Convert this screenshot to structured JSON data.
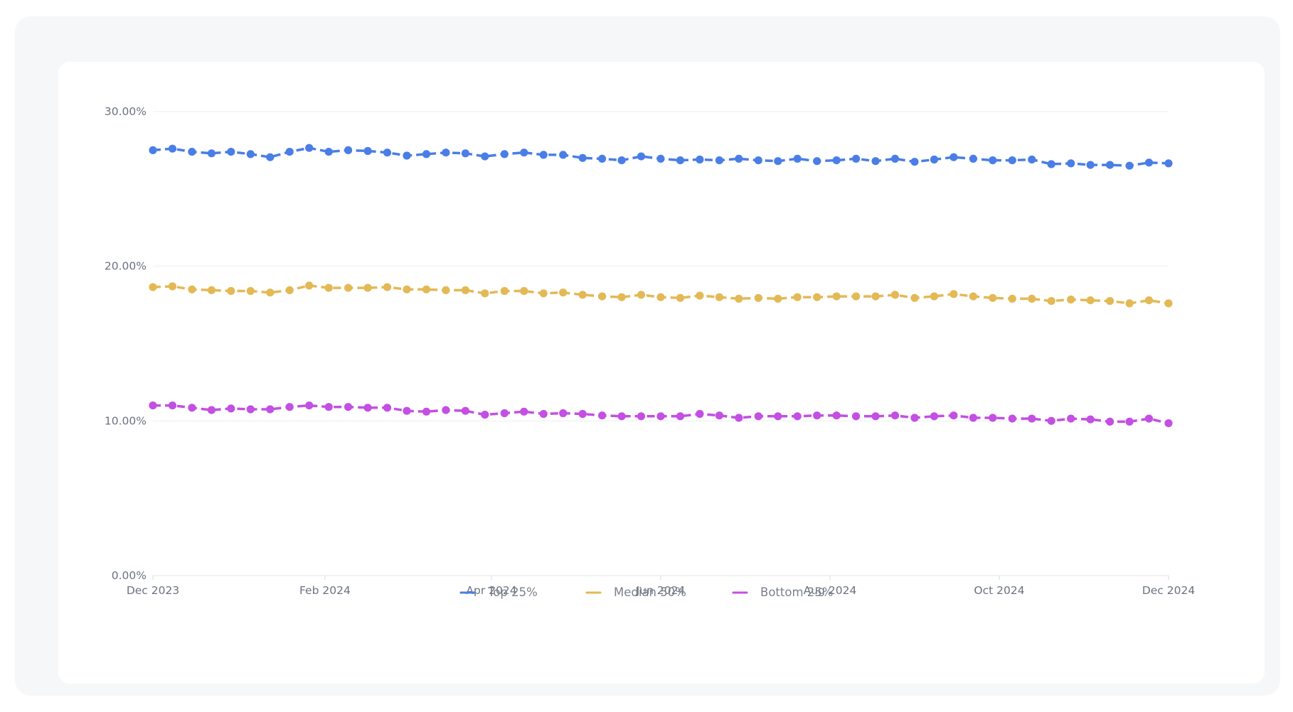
{
  "chart_data": {
    "type": "line",
    "x_start": "2023-12-01",
    "x_end": "2024-12-01",
    "y_ticks": [
      "0.00%",
      "10.00%",
      "20.00%",
      "30.00%"
    ],
    "y_tick_values": [
      0,
      10,
      20,
      30
    ],
    "ylim": [
      0,
      30
    ],
    "x_ticks": [
      {
        "date": "2023-12-01",
        "label": "Dec 2023"
      },
      {
        "date": "2024-02-01",
        "label": "Feb 2024"
      },
      {
        "date": "2024-04-01",
        "label": "Apr 2024"
      },
      {
        "date": "2024-06-01",
        "label": "Jun 2024"
      },
      {
        "date": "2024-08-01",
        "label": "Aug 2024"
      },
      {
        "date": "2024-10-01",
        "label": "Oct 2024"
      },
      {
        "date": "2024-12-01",
        "label": "Dec 2024"
      }
    ],
    "grid": "horizontal",
    "legend_position": "bottom-center",
    "series": [
      {
        "name": "Top 25%",
        "color": "#4a7ee6",
        "values": [
          27.5,
          27.6,
          27.4,
          27.3,
          27.4,
          27.25,
          27.05,
          27.4,
          27.65,
          27.4,
          27.5,
          27.45,
          27.35,
          27.15,
          27.25,
          27.35,
          27.3,
          27.1,
          27.25,
          27.35,
          27.2,
          27.2,
          27.0,
          26.95,
          26.85,
          27.1,
          26.95,
          26.85,
          26.9,
          26.85,
          26.95,
          26.85,
          26.8,
          26.95,
          26.8,
          26.85,
          26.95,
          26.8,
          26.95,
          26.75,
          26.9,
          27.05,
          26.95,
          26.85,
          26.85,
          26.9,
          26.6,
          26.65,
          26.55,
          26.55,
          26.5,
          26.7,
          26.65
        ]
      },
      {
        "name": "Median 50%",
        "color": "#e3b955",
        "values": [
          18.65,
          18.7,
          18.5,
          18.45,
          18.4,
          18.4,
          18.3,
          18.45,
          18.75,
          18.6,
          18.6,
          18.6,
          18.65,
          18.5,
          18.5,
          18.45,
          18.45,
          18.25,
          18.4,
          18.4,
          18.25,
          18.3,
          18.15,
          18.05,
          18.0,
          18.15,
          18.0,
          17.95,
          18.1,
          18.0,
          17.9,
          17.95,
          17.9,
          18.0,
          18.0,
          18.05,
          18.05,
          18.05,
          18.15,
          17.95,
          18.05,
          18.2,
          18.05,
          17.95,
          17.9,
          17.9,
          17.75,
          17.85,
          17.8,
          17.75,
          17.6,
          17.8,
          17.6
        ]
      },
      {
        "name": "Bottom 25%",
        "color": "#c34fe3",
        "values": [
          11.0,
          11.0,
          10.85,
          10.7,
          10.8,
          10.75,
          10.75,
          10.9,
          11.0,
          10.9,
          10.9,
          10.85,
          10.85,
          10.65,
          10.6,
          10.7,
          10.65,
          10.4,
          10.5,
          10.6,
          10.45,
          10.5,
          10.45,
          10.35,
          10.3,
          10.3,
          10.3,
          10.3,
          10.45,
          10.35,
          10.2,
          10.3,
          10.3,
          10.3,
          10.35,
          10.35,
          10.3,
          10.3,
          10.35,
          10.2,
          10.3,
          10.35,
          10.2,
          10.2,
          10.15,
          10.15,
          10.0,
          10.15,
          10.1,
          9.95,
          9.95,
          10.15,
          9.85
        ]
      }
    ]
  }
}
